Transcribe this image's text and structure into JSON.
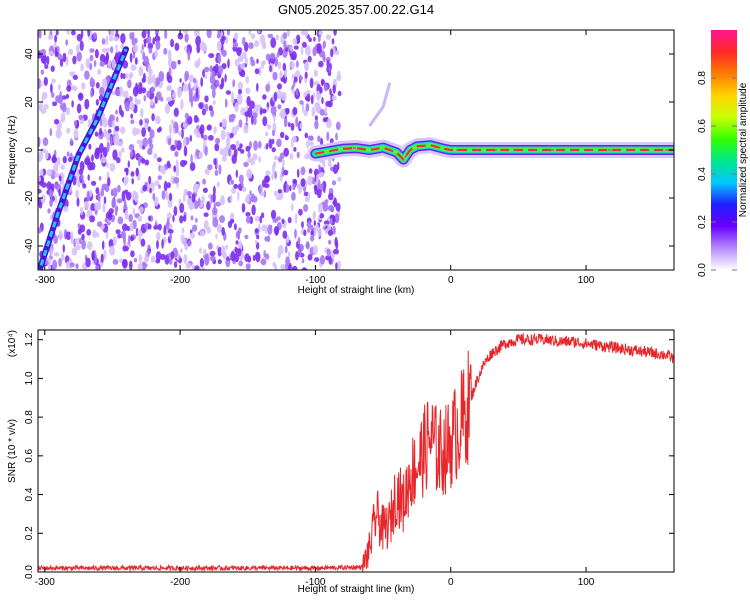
{
  "title": "GN05.2025.357.00.22.G14",
  "colors": {
    "trace": "#e8262a",
    "speckle": "#7a2cf2",
    "axis": "#000000"
  },
  "chart_data": [
    {
      "type": "heatmap",
      "name": "spectrogram",
      "xlabel": "Height of straight line (km)",
      "ylabel": "Frequency (Hz)",
      "xlim": [
        -305,
        165
      ],
      "ylim": [
        -50,
        50
      ],
      "xticks": [
        -300,
        -200,
        -100,
        0,
        100
      ],
      "yticks": [
        -40,
        -20,
        0,
        20,
        40
      ],
      "colorbar": {
        "label": "Normalized spectral amplitude",
        "range": [
          0,
          1
        ],
        "ticks": [
          0.0,
          0.2,
          0.4,
          0.6,
          0.8
        ],
        "colors": [
          "#ffffff",
          "#b58cff",
          "#6a00ff",
          "#1f1fff",
          "#00c8ff",
          "#00e68a",
          "#33ff00",
          "#c8ff00",
          "#ffd400",
          "#ff7a00",
          "#ff2a2a",
          "#ff1493"
        ]
      },
      "noise_region_x": [
        -305,
        -82
      ],
      "features": [
        {
          "name": "diagonal-streak",
          "points": [
            [
              -305,
              -52
            ],
            [
              -290,
              -26
            ],
            [
              -275,
              -2
            ],
            [
              -262,
              12
            ],
            [
              -250,
              28
            ],
            [
              -240,
              42
            ]
          ],
          "amplitude": 0.3
        },
        {
          "name": "faint-streak",
          "points": [
            [
              -60,
              10
            ],
            [
              -50,
              18
            ],
            [
              -45,
              28
            ]
          ],
          "amplitude": 0.1
        },
        {
          "name": "carrier-band",
          "points": [
            [
              -100,
              -1.5
            ],
            [
              -90,
              -0.5
            ],
            [
              -80,
              0.5
            ],
            [
              -70,
              0.8
            ],
            [
              -60,
              0
            ],
            [
              -50,
              1
            ],
            [
              -40,
              -1
            ],
            [
              -35,
              -4
            ],
            [
              -30,
              0
            ],
            [
              -25,
              1.5
            ],
            [
              -15,
              2
            ],
            [
              -5,
              0.5
            ],
            [
              0,
              0
            ],
            [
              50,
              0
            ],
            [
              100,
              0
            ],
            [
              165,
              0
            ]
          ],
          "amplitude": 0.9
        }
      ]
    },
    {
      "type": "line",
      "name": "snr",
      "xlabel": "Height of straight line (km)",
      "ylabel": "SNR (10 * v/v)",
      "y_multiplier": "(x10⁴)",
      "xlim": [
        -305,
        165
      ],
      "ylim": [
        0,
        1.25
      ],
      "xticks": [
        -300,
        -200,
        -100,
        0,
        100
      ],
      "yticks": [
        0.0,
        0.2,
        0.4,
        0.6,
        0.8,
        1.0,
        1.2
      ],
      "series": [
        {
          "x": [
            -305,
            -200,
            -100,
            -65,
            -60,
            -55,
            -50,
            -45,
            -40,
            -35,
            -30,
            -25,
            -20,
            -15,
            -10,
            -5,
            0,
            5,
            10,
            15,
            20,
            25,
            30,
            40,
            50,
            60,
            70,
            80,
            90,
            100,
            110,
            120,
            130,
            140,
            150,
            160,
            165
          ],
          "y": [
            0.02,
            0.02,
            0.02,
            0.025,
            0.12,
            0.3,
            0.22,
            0.25,
            0.42,
            0.35,
            0.5,
            0.55,
            0.62,
            0.7,
            0.62,
            0.62,
            0.67,
            0.74,
            0.8,
            0.9,
            1.0,
            1.08,
            1.13,
            1.18,
            1.2,
            1.2,
            1.2,
            1.19,
            1.19,
            1.18,
            1.17,
            1.16,
            1.15,
            1.14,
            1.13,
            1.12,
            1.1
          ]
        }
      ]
    }
  ]
}
